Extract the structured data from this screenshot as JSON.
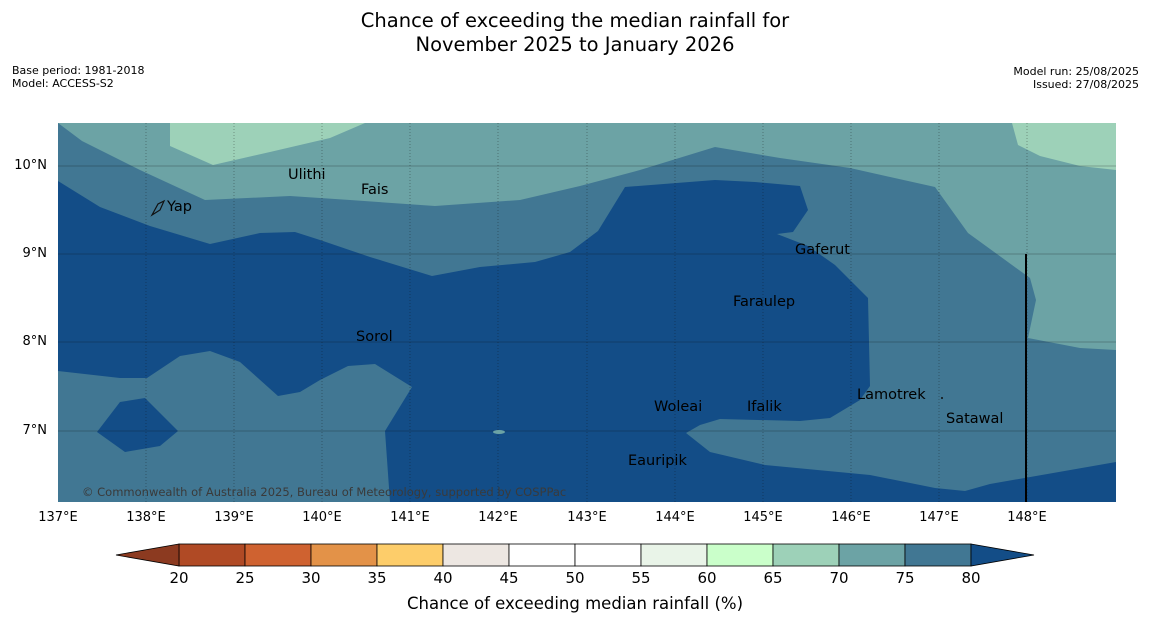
{
  "title": {
    "line1": "Chance of exceeding the median rainfall for",
    "line2": "November 2025 to January 2026"
  },
  "meta_left": [
    "Base period: 1981-2018",
    "Model: ACCESS-S2"
  ],
  "meta_right": [
    "Model run: 25/08/2025",
    "Issued: 27/08/2025"
  ],
  "map": {
    "longitude_labels": [
      "137°E",
      "138°E",
      "139°E",
      "140°E",
      "141°E",
      "142°E",
      "143°E",
      "144°E",
      "145°E",
      "146°E",
      "147°E",
      "148°E"
    ],
    "latitude_labels": [
      "10°N",
      "9°N",
      "8°N",
      "7°N"
    ],
    "places": [
      "Ulithi",
      "Fais",
      "Yap",
      "Gaferut",
      "Faraulep",
      "Sorol",
      "Woleai",
      "Ifalik",
      "Lamotrek",
      "Satawal",
      "Eauripik"
    ],
    "copyright": "© Commonwealth of Australia 2025, Bureau of Meteorology, supported by COSPPac",
    "colors": {
      "below_20": "#8c3a20",
      "20_25": "#b04a25",
      "25_30": "#cf6230",
      "30_35": "#e39248",
      "35_40": "#fdcd6a",
      "40_45": "#ede7e2",
      "45_50": "#ffffff",
      "50_55": "#ffffff",
      "55_60": "#e9f4e8",
      "60_65": "#caffca",
      "65_70": "#9dd1b8",
      "70_75": "#6ca3a5",
      "75_80": "#417793",
      "above_80": "#134d87"
    }
  },
  "colorbar": {
    "ticks": [
      "20",
      "25",
      "30",
      "35",
      "40",
      "45",
      "50",
      "55",
      "60",
      "65",
      "70",
      "75",
      "80"
    ],
    "label": "Chance of exceeding median rainfall (%)",
    "bin_colors": [
      "#b04a25",
      "#cf6230",
      "#e39248",
      "#fdcd6a",
      "#ede7e2",
      "#ffffff",
      "#ffffff",
      "#e9f4e8",
      "#caffca",
      "#9dd1b8",
      "#6ca3a5",
      "#417793"
    ],
    "under_color": "#8c3a20",
    "over_color": "#134d87"
  }
}
